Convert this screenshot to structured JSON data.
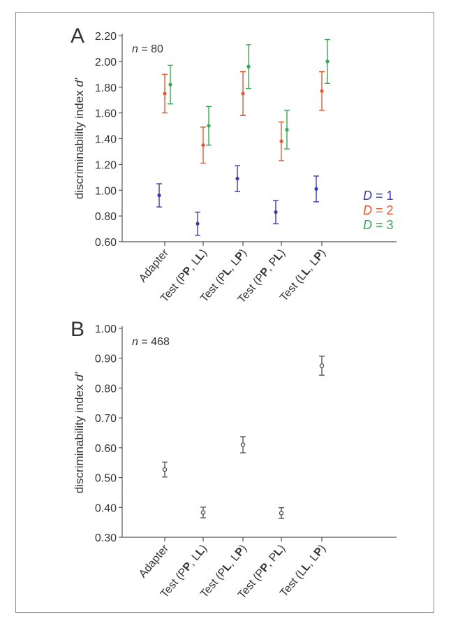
{
  "chart_data": [
    {
      "panel_label": "A",
      "type": "scatter",
      "annotation": {
        "var": "n",
        "value": "80"
      },
      "ylabel": {
        "text": "discriminability index ",
        "var": "d'"
      },
      "ylim": [
        0.6,
        2.2
      ],
      "yticks": [
        "0.60",
        "0.80",
        "1.00",
        "1.20",
        "1.40",
        "1.60",
        "1.80",
        "2.00",
        "2.20"
      ],
      "categories": [
        [
          {
            "t": "Adapter",
            "b": false
          }
        ],
        [
          {
            "t": "Test (P",
            "b": false
          },
          {
            "t": "P",
            "b": true
          },
          {
            "t": ", L",
            "b": false
          },
          {
            "t": "L",
            "b": true
          },
          {
            "t": ")",
            "b": false
          }
        ],
        [
          {
            "t": "Test (P",
            "b": false
          },
          {
            "t": "L",
            "b": true
          },
          {
            "t": ", L",
            "b": false
          },
          {
            "t": "P",
            "b": true
          },
          {
            "t": ")",
            "b": false
          }
        ],
        [
          {
            "t": "Test (P",
            "b": false
          },
          {
            "t": "P",
            "b": true
          },
          {
            "t": ", P",
            "b": false
          },
          {
            "t": "L",
            "b": true
          },
          {
            "t": ")",
            "b": false
          }
        ],
        [
          {
            "t": "Test (L",
            "b": false
          },
          {
            "t": "L",
            "b": true
          },
          {
            "t": ", L",
            "b": false
          },
          {
            "t": "P",
            "b": true
          },
          {
            "t": ")",
            "b": false
          }
        ]
      ],
      "legend_position": "bottom-right",
      "series": [
        {
          "name": "D = 1",
          "legend_var": "D",
          "legend_rest": " = 1",
          "color": "#3a3ab0",
          "values": [
            0.96,
            0.74,
            1.09,
            0.83,
            1.01
          ],
          "err": [
            0.09,
            0.09,
            0.1,
            0.09,
            0.1
          ]
        },
        {
          "name": "D = 2",
          "legend_var": "D",
          "legend_rest": " = 2",
          "color": "#e8572b",
          "values": [
            1.75,
            1.35,
            1.75,
            1.38,
            1.77
          ],
          "err": [
            0.15,
            0.14,
            0.17,
            0.15,
            0.15
          ]
        },
        {
          "name": "D = 3",
          "legend_var": "D",
          "legend_rest": " = 3",
          "color": "#35a853",
          "values": [
            1.82,
            1.5,
            1.96,
            1.47,
            2.0
          ],
          "err": [
            0.15,
            0.15,
            0.17,
            0.15,
            0.17
          ]
        }
      ]
    },
    {
      "panel_label": "B",
      "type": "scatter",
      "annotation": {
        "var": "n",
        "value": "468"
      },
      "ylabel": {
        "text": "discriminability index ",
        "var": "d'"
      },
      "ylim": [
        0.3,
        1.0
      ],
      "yticks": [
        "0.30",
        "0.40",
        "0.50",
        "0.60",
        "0.70",
        "0.80",
        "0.90",
        "1.00"
      ],
      "categories": [
        [
          {
            "t": "Adapter",
            "b": false
          }
        ],
        [
          {
            "t": "Test (P",
            "b": false
          },
          {
            "t": "P",
            "b": true
          },
          {
            "t": ", L",
            "b": false
          },
          {
            "t": "L",
            "b": true
          },
          {
            "t": ")",
            "b": false
          }
        ],
        [
          {
            "t": "Test (P",
            "b": false
          },
          {
            "t": "L",
            "b": true
          },
          {
            "t": ", L",
            "b": false
          },
          {
            "t": "P",
            "b": true
          },
          {
            "t": ")",
            "b": false
          }
        ],
        [
          {
            "t": "Test (P",
            "b": false
          },
          {
            "t": "P",
            "b": true
          },
          {
            "t": ", P",
            "b": false
          },
          {
            "t": "L",
            "b": true
          },
          {
            "t": ")",
            "b": false
          }
        ],
        [
          {
            "t": "Test (L",
            "b": false
          },
          {
            "t": "L",
            "b": true
          },
          {
            "t": ", L",
            "b": false
          },
          {
            "t": "P",
            "b": true
          },
          {
            "t": ")",
            "b": false
          }
        ]
      ],
      "series": [
        {
          "color": "#555555",
          "values": [
            0.527,
            0.383,
            0.61,
            0.381,
            0.875
          ],
          "err": [
            0.025,
            0.018,
            0.027,
            0.018,
            0.032
          ]
        }
      ]
    }
  ]
}
